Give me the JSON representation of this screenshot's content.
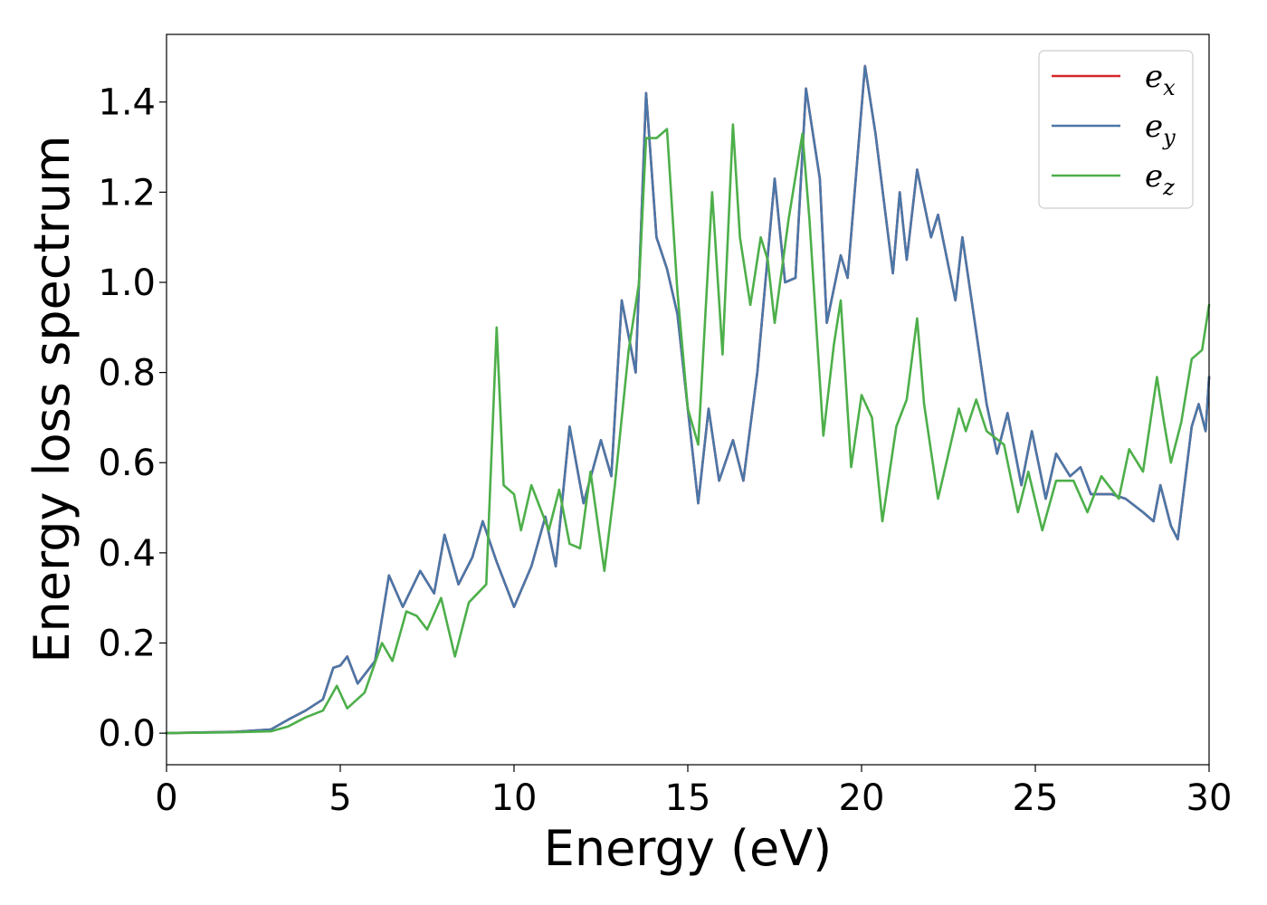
{
  "chart_data": {
    "type": "line",
    "title": "",
    "xlabel": "Energy (eV)",
    "ylabel": "Energy loss spectrum",
    "xlim": [
      0,
      30
    ],
    "ylim": [
      -0.07,
      1.55
    ],
    "xticks": [
      0,
      5,
      10,
      15,
      20,
      25,
      30
    ],
    "xtick_labels": [
      "0",
      "5",
      "10",
      "15",
      "20",
      "25",
      "30"
    ],
    "yticks": [
      0.0,
      0.2,
      0.4,
      0.6,
      0.8,
      1.0,
      1.2,
      1.4
    ],
    "ytick_labels": [
      "0.0",
      "0.2",
      "0.4",
      "0.6",
      "0.8",
      "1.0",
      "1.2",
      "1.4"
    ],
    "grid": false,
    "legend_position": "top-right",
    "series": [
      {
        "name": "e_x",
        "base": "e",
        "sub": "x",
        "color": "#d62728",
        "points": [
          [
            0,
            0.0
          ],
          [
            2,
            0.003
          ],
          [
            3,
            0.008
          ],
          [
            3.5,
            0.03
          ],
          [
            4,
            0.05
          ],
          [
            4.5,
            0.075
          ],
          [
            4.8,
            0.145
          ],
          [
            5,
            0.15
          ],
          [
            5.2,
            0.17
          ],
          [
            5.5,
            0.11
          ],
          [
            6,
            0.16
          ],
          [
            6.4,
            0.35
          ],
          [
            6.8,
            0.28
          ],
          [
            7.3,
            0.36
          ],
          [
            7.7,
            0.31
          ],
          [
            8,
            0.44
          ],
          [
            8.4,
            0.33
          ],
          [
            8.8,
            0.39
          ],
          [
            9.1,
            0.47
          ],
          [
            9.5,
            0.38
          ],
          [
            10,
            0.28
          ],
          [
            10.5,
            0.37
          ],
          [
            10.9,
            0.48
          ],
          [
            11.2,
            0.37
          ],
          [
            11.6,
            0.68
          ],
          [
            12,
            0.51
          ],
          [
            12.5,
            0.65
          ],
          [
            12.8,
            0.57
          ],
          [
            13.1,
            0.96
          ],
          [
            13.5,
            0.8
          ],
          [
            13.8,
            1.42
          ],
          [
            14.1,
            1.1
          ],
          [
            14.4,
            1.03
          ],
          [
            14.7,
            0.93
          ],
          [
            15.3,
            0.51
          ],
          [
            15.6,
            0.72
          ],
          [
            15.9,
            0.56
          ],
          [
            16.3,
            0.65
          ],
          [
            16.6,
            0.56
          ],
          [
            17,
            0.8
          ],
          [
            17.5,
            1.23
          ],
          [
            17.8,
            1.0
          ],
          [
            18.1,
            1.01
          ],
          [
            18.4,
            1.43
          ],
          [
            18.8,
            1.23
          ],
          [
            19.0,
            0.91
          ],
          [
            19.4,
            1.06
          ],
          [
            19.6,
            1.01
          ],
          [
            20.1,
            1.48
          ],
          [
            20.4,
            1.33
          ],
          [
            20.9,
            1.02
          ],
          [
            21.1,
            1.2
          ],
          [
            21.3,
            1.05
          ],
          [
            21.6,
            1.25
          ],
          [
            22,
            1.1
          ],
          [
            22.2,
            1.15
          ],
          [
            22.7,
            0.96
          ],
          [
            22.9,
            1.1
          ],
          [
            23.3,
            0.89
          ],
          [
            23.6,
            0.73
          ],
          [
            23.9,
            0.62
          ],
          [
            24.2,
            0.71
          ],
          [
            24.6,
            0.55
          ],
          [
            24.9,
            0.67
          ],
          [
            25.3,
            0.52
          ],
          [
            25.6,
            0.62
          ],
          [
            26,
            0.57
          ],
          [
            26.3,
            0.59
          ],
          [
            26.6,
            0.53
          ],
          [
            27.2,
            0.53
          ],
          [
            27.6,
            0.52
          ],
          [
            28.1,
            0.49
          ],
          [
            28.4,
            0.47
          ],
          [
            28.6,
            0.55
          ],
          [
            28.9,
            0.46
          ],
          [
            29.1,
            0.43
          ],
          [
            29.5,
            0.68
          ],
          [
            29.7,
            0.73
          ],
          [
            29.9,
            0.67
          ],
          [
            30,
            0.79
          ]
        ]
      },
      {
        "name": "e_y",
        "base": "e",
        "sub": "y",
        "color": "#4a77a8",
        "points": [
          [
            0,
            0.0
          ],
          [
            2,
            0.003
          ],
          [
            3,
            0.008
          ],
          [
            3.5,
            0.03
          ],
          [
            4,
            0.05
          ],
          [
            4.5,
            0.075
          ],
          [
            4.8,
            0.145
          ],
          [
            5,
            0.15
          ],
          [
            5.2,
            0.17
          ],
          [
            5.5,
            0.11
          ],
          [
            6,
            0.16
          ],
          [
            6.4,
            0.35
          ],
          [
            6.8,
            0.28
          ],
          [
            7.3,
            0.36
          ],
          [
            7.7,
            0.31
          ],
          [
            8,
            0.44
          ],
          [
            8.4,
            0.33
          ],
          [
            8.8,
            0.39
          ],
          [
            9.1,
            0.47
          ],
          [
            9.5,
            0.38
          ],
          [
            10,
            0.28
          ],
          [
            10.5,
            0.37
          ],
          [
            10.9,
            0.48
          ],
          [
            11.2,
            0.37
          ],
          [
            11.6,
            0.68
          ],
          [
            12,
            0.51
          ],
          [
            12.5,
            0.65
          ],
          [
            12.8,
            0.57
          ],
          [
            13.1,
            0.96
          ],
          [
            13.5,
            0.8
          ],
          [
            13.8,
            1.42
          ],
          [
            14.1,
            1.1
          ],
          [
            14.4,
            1.03
          ],
          [
            14.7,
            0.93
          ],
          [
            15.3,
            0.51
          ],
          [
            15.6,
            0.72
          ],
          [
            15.9,
            0.56
          ],
          [
            16.3,
            0.65
          ],
          [
            16.6,
            0.56
          ],
          [
            17,
            0.8
          ],
          [
            17.5,
            1.23
          ],
          [
            17.8,
            1.0
          ],
          [
            18.1,
            1.01
          ],
          [
            18.4,
            1.43
          ],
          [
            18.8,
            1.23
          ],
          [
            19.0,
            0.91
          ],
          [
            19.4,
            1.06
          ],
          [
            19.6,
            1.01
          ],
          [
            20.1,
            1.48
          ],
          [
            20.4,
            1.33
          ],
          [
            20.9,
            1.02
          ],
          [
            21.1,
            1.2
          ],
          [
            21.3,
            1.05
          ],
          [
            21.6,
            1.25
          ],
          [
            22,
            1.1
          ],
          [
            22.2,
            1.15
          ],
          [
            22.7,
            0.96
          ],
          [
            22.9,
            1.1
          ],
          [
            23.3,
            0.89
          ],
          [
            23.6,
            0.73
          ],
          [
            23.9,
            0.62
          ],
          [
            24.2,
            0.71
          ],
          [
            24.6,
            0.55
          ],
          [
            24.9,
            0.67
          ],
          [
            25.3,
            0.52
          ],
          [
            25.6,
            0.62
          ],
          [
            26,
            0.57
          ],
          [
            26.3,
            0.59
          ],
          [
            26.6,
            0.53
          ],
          [
            27.2,
            0.53
          ],
          [
            27.6,
            0.52
          ],
          [
            28.1,
            0.49
          ],
          [
            28.4,
            0.47
          ],
          [
            28.6,
            0.55
          ],
          [
            28.9,
            0.46
          ],
          [
            29.1,
            0.43
          ],
          [
            29.5,
            0.68
          ],
          [
            29.7,
            0.73
          ],
          [
            29.9,
            0.67
          ],
          [
            30,
            0.79
          ]
        ]
      },
      {
        "name": "e_z",
        "base": "e",
        "sub": "z",
        "color": "#4daf4a",
        "points": [
          [
            0,
            0.0
          ],
          [
            2,
            0.002
          ],
          [
            3,
            0.004
          ],
          [
            3.5,
            0.015
          ],
          [
            4,
            0.035
          ],
          [
            4.5,
            0.05
          ],
          [
            4.9,
            0.105
          ],
          [
            5.2,
            0.055
          ],
          [
            5.7,
            0.09
          ],
          [
            6.2,
            0.2
          ],
          [
            6.5,
            0.16
          ],
          [
            6.9,
            0.27
          ],
          [
            7.2,
            0.26
          ],
          [
            7.5,
            0.23
          ],
          [
            7.9,
            0.3
          ],
          [
            8.3,
            0.17
          ],
          [
            8.7,
            0.29
          ],
          [
            9.2,
            0.33
          ],
          [
            9.5,
            0.9
          ],
          [
            9.7,
            0.55
          ],
          [
            10,
            0.53
          ],
          [
            10.2,
            0.45
          ],
          [
            10.5,
            0.55
          ],
          [
            10.7,
            0.51
          ],
          [
            11,
            0.45
          ],
          [
            11.3,
            0.54
          ],
          [
            11.6,
            0.42
          ],
          [
            11.9,
            0.41
          ],
          [
            12.2,
            0.58
          ],
          [
            12.6,
            0.36
          ],
          [
            12.9,
            0.55
          ],
          [
            13.3,
            0.85
          ],
          [
            13.6,
            1.0
          ],
          [
            13.8,
            1.32
          ],
          [
            14.1,
            1.32
          ],
          [
            14.4,
            1.34
          ],
          [
            14.7,
            0.98
          ],
          [
            15.0,
            0.72
          ],
          [
            15.3,
            0.64
          ],
          [
            15.7,
            1.2
          ],
          [
            16.0,
            0.84
          ],
          [
            16.3,
            1.35
          ],
          [
            16.5,
            1.1
          ],
          [
            16.8,
            0.95
          ],
          [
            17.1,
            1.1
          ],
          [
            17.3,
            1.05
          ],
          [
            17.5,
            0.91
          ],
          [
            17.9,
            1.14
          ],
          [
            18.3,
            1.33
          ],
          [
            18.5,
            1.14
          ],
          [
            18.7,
            0.9
          ],
          [
            18.9,
            0.66
          ],
          [
            19.2,
            0.86
          ],
          [
            19.4,
            0.96
          ],
          [
            19.7,
            0.59
          ],
          [
            20.0,
            0.75
          ],
          [
            20.3,
            0.7
          ],
          [
            20.6,
            0.47
          ],
          [
            21.0,
            0.68
          ],
          [
            21.3,
            0.74
          ],
          [
            21.6,
            0.92
          ],
          [
            21.8,
            0.73
          ],
          [
            22.2,
            0.52
          ],
          [
            22.5,
            0.62
          ],
          [
            22.8,
            0.72
          ],
          [
            23.0,
            0.67
          ],
          [
            23.3,
            0.74
          ],
          [
            23.6,
            0.67
          ],
          [
            24.1,
            0.64
          ],
          [
            24.5,
            0.49
          ],
          [
            24.8,
            0.58
          ],
          [
            25.2,
            0.45
          ],
          [
            25.6,
            0.56
          ],
          [
            26.1,
            0.56
          ],
          [
            26.5,
            0.49
          ],
          [
            26.9,
            0.57
          ],
          [
            27.4,
            0.52
          ],
          [
            27.7,
            0.63
          ],
          [
            28.1,
            0.58
          ],
          [
            28.5,
            0.79
          ],
          [
            28.7,
            0.69
          ],
          [
            28.9,
            0.6
          ],
          [
            29.2,
            0.69
          ],
          [
            29.5,
            0.83
          ],
          [
            29.8,
            0.85
          ],
          [
            30,
            0.95
          ]
        ]
      }
    ]
  }
}
